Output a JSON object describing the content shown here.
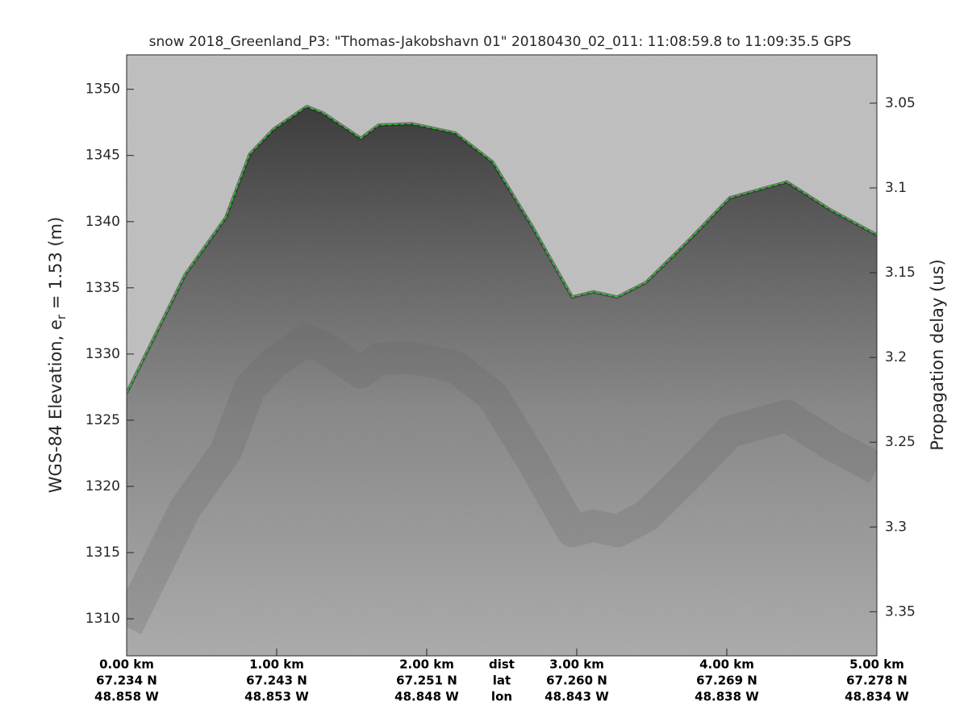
{
  "chart_data": {
    "type": "line",
    "title": "snow 2018_Greenland_P3: \"Thomas-Jakobshavn 01\"  20180430_02_011: 11:08:59.8 to 11:09:35.5 GPS",
    "ylabel": [
      "WGS-84 Elevation, e",
      "r",
      " = 1.53 (m)"
    ],
    "y2label": "Propagation delay (us)",
    "row_names": [
      "dist",
      "lat",
      "lon"
    ],
    "x": [
      0,
      0.39,
      0.66,
      0.82,
      0.98,
      1.2,
      1.31,
      1.56,
      1.68,
      1.9,
      2.19,
      2.44,
      2.7,
      2.97,
      3.11,
      3.27,
      3.46,
      3.73,
      4.02,
      4.4,
      4.69,
      5.0
    ],
    "series": [
      {
        "color": "#22cc22",
        "values": [
          1327.05,
          1336.0,
          1340.3,
          1345.1,
          1347.0,
          1348.7,
          1348.2,
          1346.3,
          1347.3,
          1347.4,
          1346.7,
          1344.5,
          1339.7,
          1334.3,
          1334.7,
          1334.3,
          1335.4,
          1338.4,
          1341.8,
          1343.0,
          1340.9,
          1339.0
        ]
      }
    ],
    "xlim": [
      0,
      5
    ],
    "xticks": [
      {
        "value": 0,
        "label": "0.00 km"
      },
      {
        "value": 1,
        "label": "1.00 km"
      },
      {
        "value": 2,
        "label": "2.00 km"
      },
      {
        "value": 3,
        "label": "3.00 km"
      },
      {
        "value": 4,
        "label": "4.00 km"
      },
      {
        "value": 5,
        "label": "5.00 km"
      }
    ],
    "lat_labels": [
      "67.234 N",
      "67.243 N",
      "67.251 N",
      "67.260 N",
      "67.269 N",
      "67.278 N"
    ],
    "lon_labels": [
      "48.858 W",
      "48.853 W",
      "48.848 W",
      "48.843 W",
      "48.838 W",
      "48.834 W"
    ],
    "ylim": [
      1307.2,
      1352.6
    ],
    "yticks": [
      1310,
      1315,
      1320,
      1325,
      1330,
      1335,
      1340,
      1345,
      1350
    ],
    "y2lim": [
      3.376,
      3.0215
    ],
    "y2ticks": [
      3.05,
      3.1,
      3.15,
      3.2,
      3.25,
      3.3,
      3.35
    ]
  }
}
